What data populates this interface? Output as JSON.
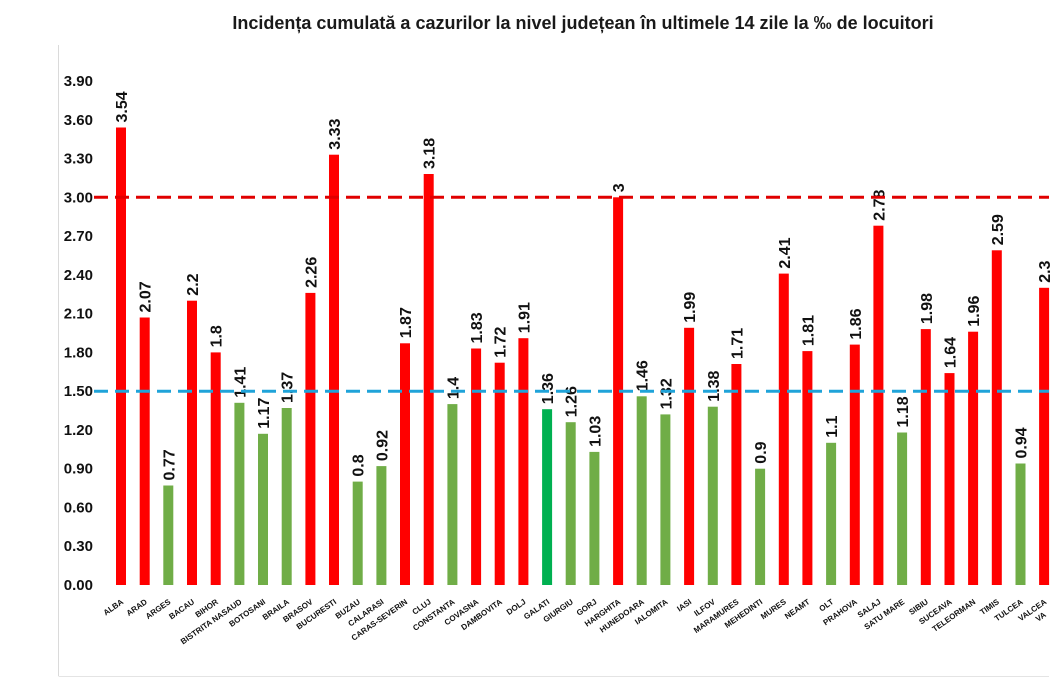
{
  "chart_data": {
    "type": "bar",
    "title": "Incidența cumulată a cazurilor la nivel județean în ultimele 14 zile la ‰ de locuitori",
    "categories": [
      "ALBA",
      "ARAD",
      "ARGES",
      "BACAU",
      "BIHOR",
      "BISTRITA NASAUD",
      "BOTOSANI",
      "BRAILA",
      "BRASOV",
      "BUCURESTI",
      "BUZAU",
      "CALARASI",
      "CARAS-SEVERIN",
      "CLUJ",
      "CONSTANTA",
      "COVASNA",
      "DAMBOVITA",
      "DOLJ",
      "GALATI",
      "GIURGIU",
      "GORJ",
      "HARGHITA",
      "HUNEDOARA",
      "IALOMITA",
      "IASI",
      "ILFOV",
      "MARAMURES",
      "MEHEDINTI",
      "MURES",
      "NEAMT",
      "OLT",
      "PRAHOVA",
      "SALAJ",
      "SATU MARE",
      "SIBIU",
      "SUCEAVA",
      "TELEORMAN",
      "TIMIS",
      "TULCEA",
      "VALCEA",
      "VA"
    ],
    "values": [
      3.54,
      2.07,
      0.77,
      2.2,
      1.8,
      1.41,
      1.17,
      1.37,
      2.26,
      3.33,
      0.8,
      0.92,
      1.87,
      3.18,
      1.4,
      1.83,
      1.72,
      1.91,
      1.36,
      1.26,
      1.03,
      3,
      1.46,
      1.32,
      1.99,
      1.38,
      1.71,
      0.9,
      2.41,
      1.81,
      1.1,
      1.86,
      2.78,
      1.18,
      1.98,
      1.64,
      1.96,
      2.59,
      0.94,
      2.3,
      null
    ],
    "bar_colors": [
      "#ff0000",
      "#ff0000",
      "#70ad47",
      "#ff0000",
      "#ff0000",
      "#70ad47",
      "#70ad47",
      "#70ad47",
      "#ff0000",
      "#ff0000",
      "#70ad47",
      "#70ad47",
      "#ff0000",
      "#ff0000",
      "#70ad47",
      "#ff0000",
      "#ff0000",
      "#ff0000",
      "#00b050",
      "#70ad47",
      "#70ad47",
      "#ff0000",
      "#70ad47",
      "#70ad47",
      "#ff0000",
      "#70ad47",
      "#ff0000",
      "#70ad47",
      "#ff0000",
      "#ff0000",
      "#70ad47",
      "#ff0000",
      "#ff0000",
      "#70ad47",
      "#ff0000",
      "#ff0000",
      "#ff0000",
      "#ff0000",
      "#70ad47",
      "#ff0000",
      null
    ],
    "ylim": [
      0,
      3.9
    ],
    "ytick_labels": [
      "0.00",
      "0.30",
      "0.60",
      "0.90",
      "1.20",
      "1.50",
      "1.80",
      "2.10",
      "2.40",
      "2.70",
      "3.00",
      "3.30",
      "3.60",
      "3.90"
    ],
    "reference_lines": [
      {
        "value": 3.0,
        "color": "#e00000",
        "dashed": true
      },
      {
        "value": 1.5,
        "color": "#1fa3d9",
        "dashed": true
      }
    ],
    "grid": false
  }
}
